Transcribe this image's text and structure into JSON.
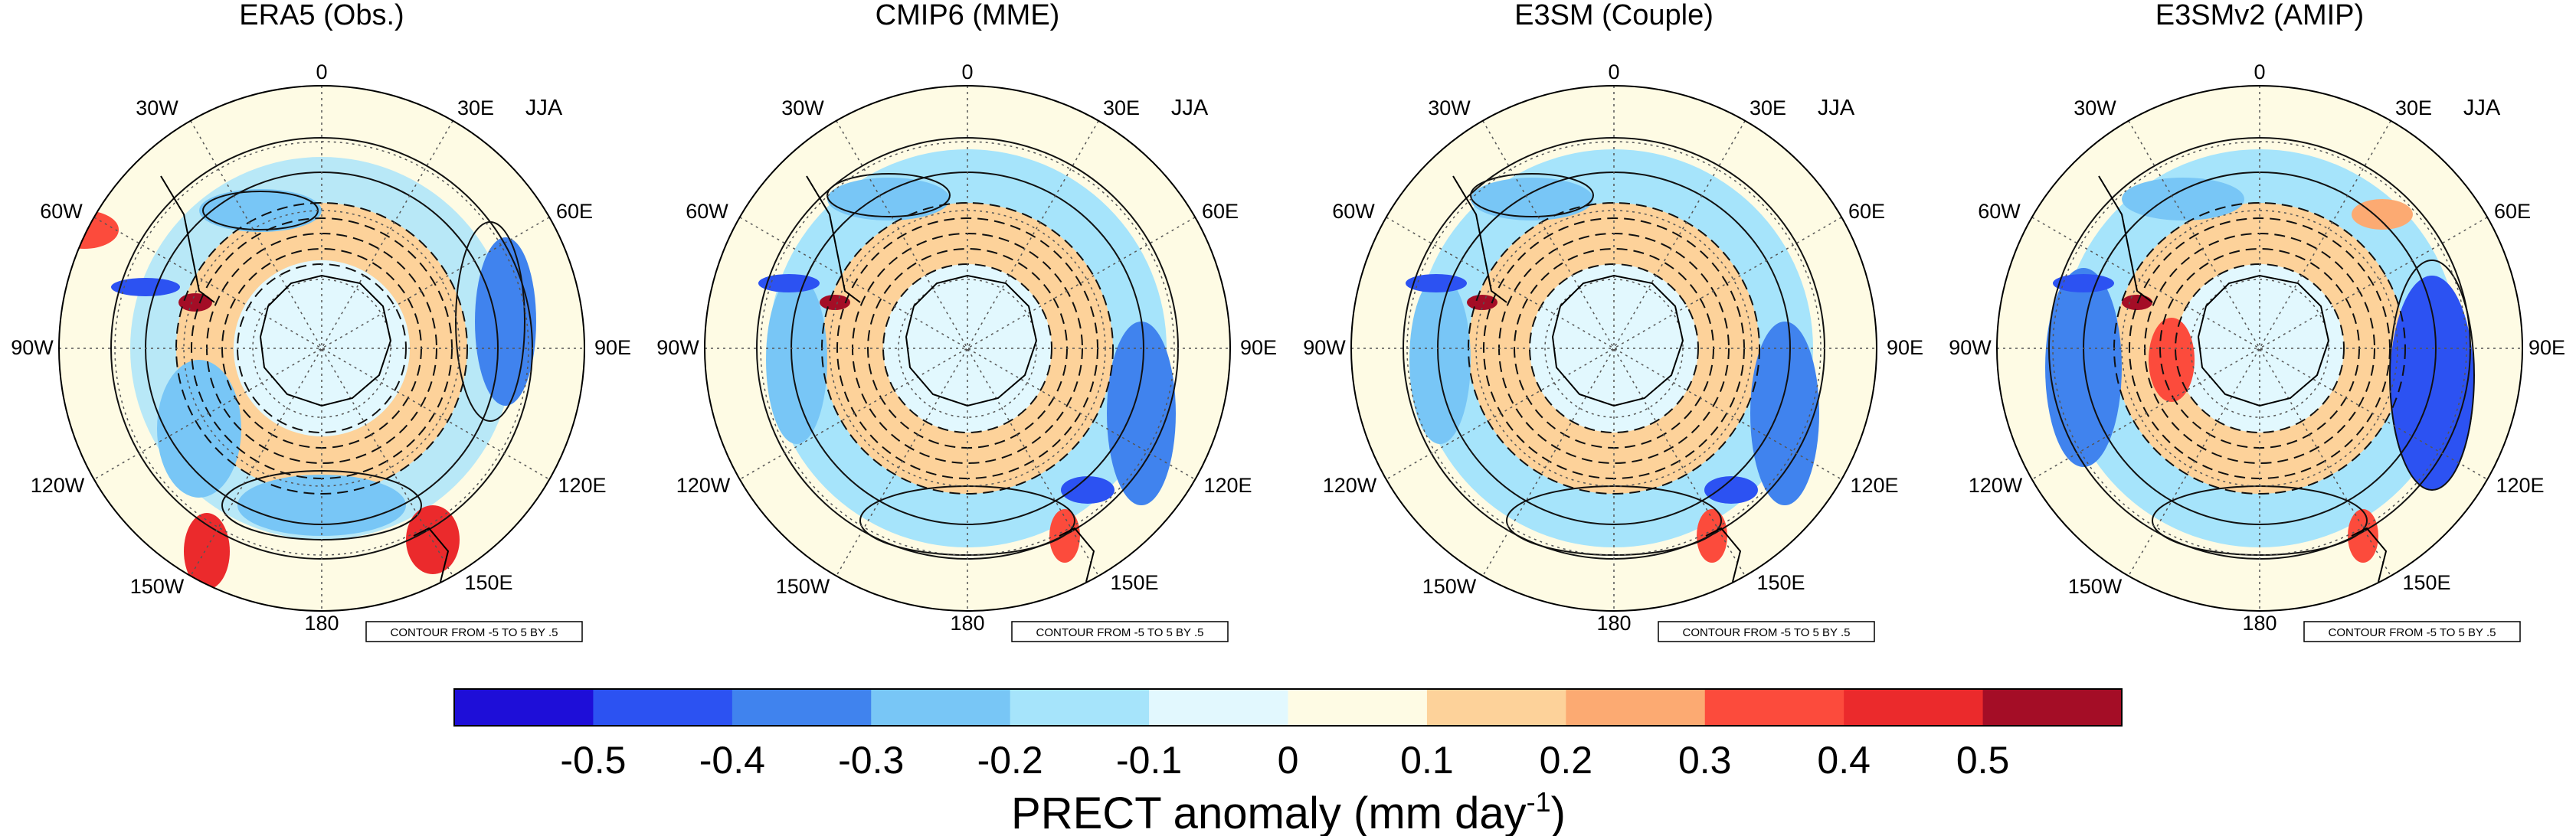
{
  "figure": {
    "season": "JJA",
    "contour_note": "CONTOUR FROM -5 TO 5 BY .5",
    "lon_labels": [
      "0",
      "30E",
      "60E",
      "90E",
      "120E",
      "150E",
      "180",
      "150W",
      "120W",
      "90W",
      "60W",
      "30W"
    ],
    "panels": [
      {
        "title": "ERA5 (Obs.)"
      },
      {
        "title": "CMIP6 (MME)"
      },
      {
        "title": "E3SM (Couple)"
      },
      {
        "title": "E3SMv2 (AMIP)"
      }
    ],
    "colorbar": {
      "ticks": [
        "-0.5",
        "-0.4",
        "-0.3",
        "-0.2",
        "-0.1",
        "0",
        "0.1",
        "0.2",
        "0.3",
        "0.4",
        "0.5"
      ],
      "colors": [
        "#1e0ed8",
        "#2c52f2",
        "#4083ee",
        "#78c6f6",
        "#a6e4fb",
        "#e2f8fe",
        "#fefbe4",
        "#fdd29a",
        "#fcaa72",
        "#fc4b3c",
        "#eb2a2c",
        "#a40d26"
      ],
      "label_main": "PRECT anomaly (mm day",
      "label_sup": "-1",
      "label_close": ")"
    }
  }
}
